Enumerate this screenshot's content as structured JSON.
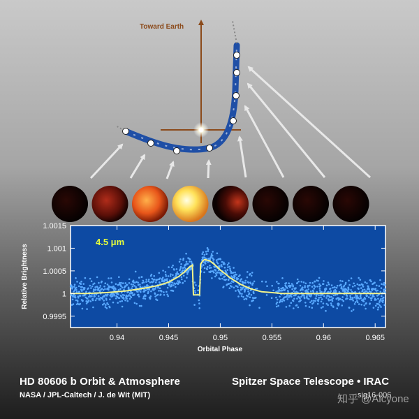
{
  "diagram": {
    "earth_label": "Toward Earth",
    "colors": {
      "earth_arrow": "#8b4a1a",
      "orbit": "#1f4fa6",
      "star": "#ffffff",
      "arrow": "#e8e8e8"
    },
    "planet_phases": [
      "dark",
      "faint-red",
      "orange",
      "bright-yellow",
      "dim-red",
      "dark",
      "dark",
      "dark"
    ]
  },
  "chart_data": {
    "type": "scatter",
    "annotation": "4.5 μm",
    "xlabel": "Orbital Phase",
    "ylabel": "Relative Brightness",
    "xlim": [
      0.9355,
      0.966
    ],
    "ylim": [
      0.99925,
      1.0015
    ],
    "xticks": [
      0.94,
      0.945,
      0.95,
      0.955,
      0.96,
      0.965
    ],
    "xtick_labels": [
      "0.94",
      "0.945",
      "0.95",
      "0.955",
      "0.96",
      "0.965"
    ],
    "yticks": [
      0.9995,
      1,
      1.0005,
      1.001,
      1.0015
    ],
    "ytick_labels": [
      "0.9995",
      "1",
      "1.0005",
      "1.001",
      "1.0015"
    ],
    "grid": false,
    "background": "#0d4aa3",
    "point_color": "#58a8ff",
    "model_color": "#f4f48a",
    "series": [
      {
        "kind": "model",
        "x": [
          0.9355,
          0.937,
          0.939,
          0.941,
          0.943,
          0.944,
          0.945,
          0.946,
          0.9465,
          0.947,
          0.9473,
          0.9474,
          0.948,
          0.9481,
          0.9483,
          0.9485,
          0.949,
          0.9495,
          0.95,
          0.9505,
          0.951,
          0.952,
          0.953,
          0.954,
          0.956,
          0.958,
          0.96,
          0.962,
          0.964,
          0.966
        ],
        "y": [
          1.0,
          1.0,
          1.00002,
          1.00006,
          1.00013,
          1.00018,
          1.00025,
          1.00038,
          1.00047,
          1.00058,
          1.00063,
          0.99997,
          0.99997,
          1.00065,
          1.00072,
          1.00075,
          1.00072,
          1.00063,
          1.00052,
          1.00043,
          1.00034,
          1.0002,
          1.0001,
          1.00004,
          1.0,
          1.0,
          1.0,
          1.0,
          1.0,
          1.0
        ]
      }
    ],
    "scatter_noise": 0.00027
  },
  "footer": {
    "title": "HD 80606 b Orbit & Atmosphere",
    "credit": "NASA / JPL-Caltech / J. de Wit (MIT)",
    "instrument": "Spitzer Space Telescope • IRAC",
    "image_id": "sig16-006",
    "watermark": "知乎 @Alcyone"
  }
}
